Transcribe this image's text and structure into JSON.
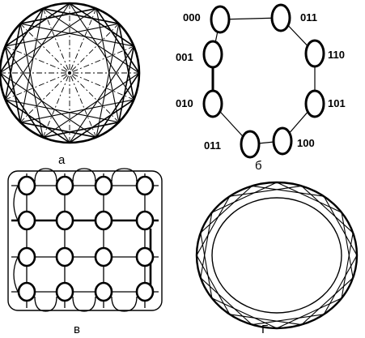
{
  "panels": {
    "a": {
      "caption": "а",
      "node_count": 16
    },
    "b": {
      "caption": "б",
      "nodes": [
        "000",
        "011",
        "110",
        "101",
        "100",
        "011",
        "010",
        "001"
      ]
    },
    "v": {
      "caption": "в",
      "rows": 4,
      "cols": 4
    },
    "g": {
      "caption": "Г",
      "node_count": 20
    }
  },
  "colors": {
    "ink": "#000000",
    "paper": "#ffffff"
  }
}
